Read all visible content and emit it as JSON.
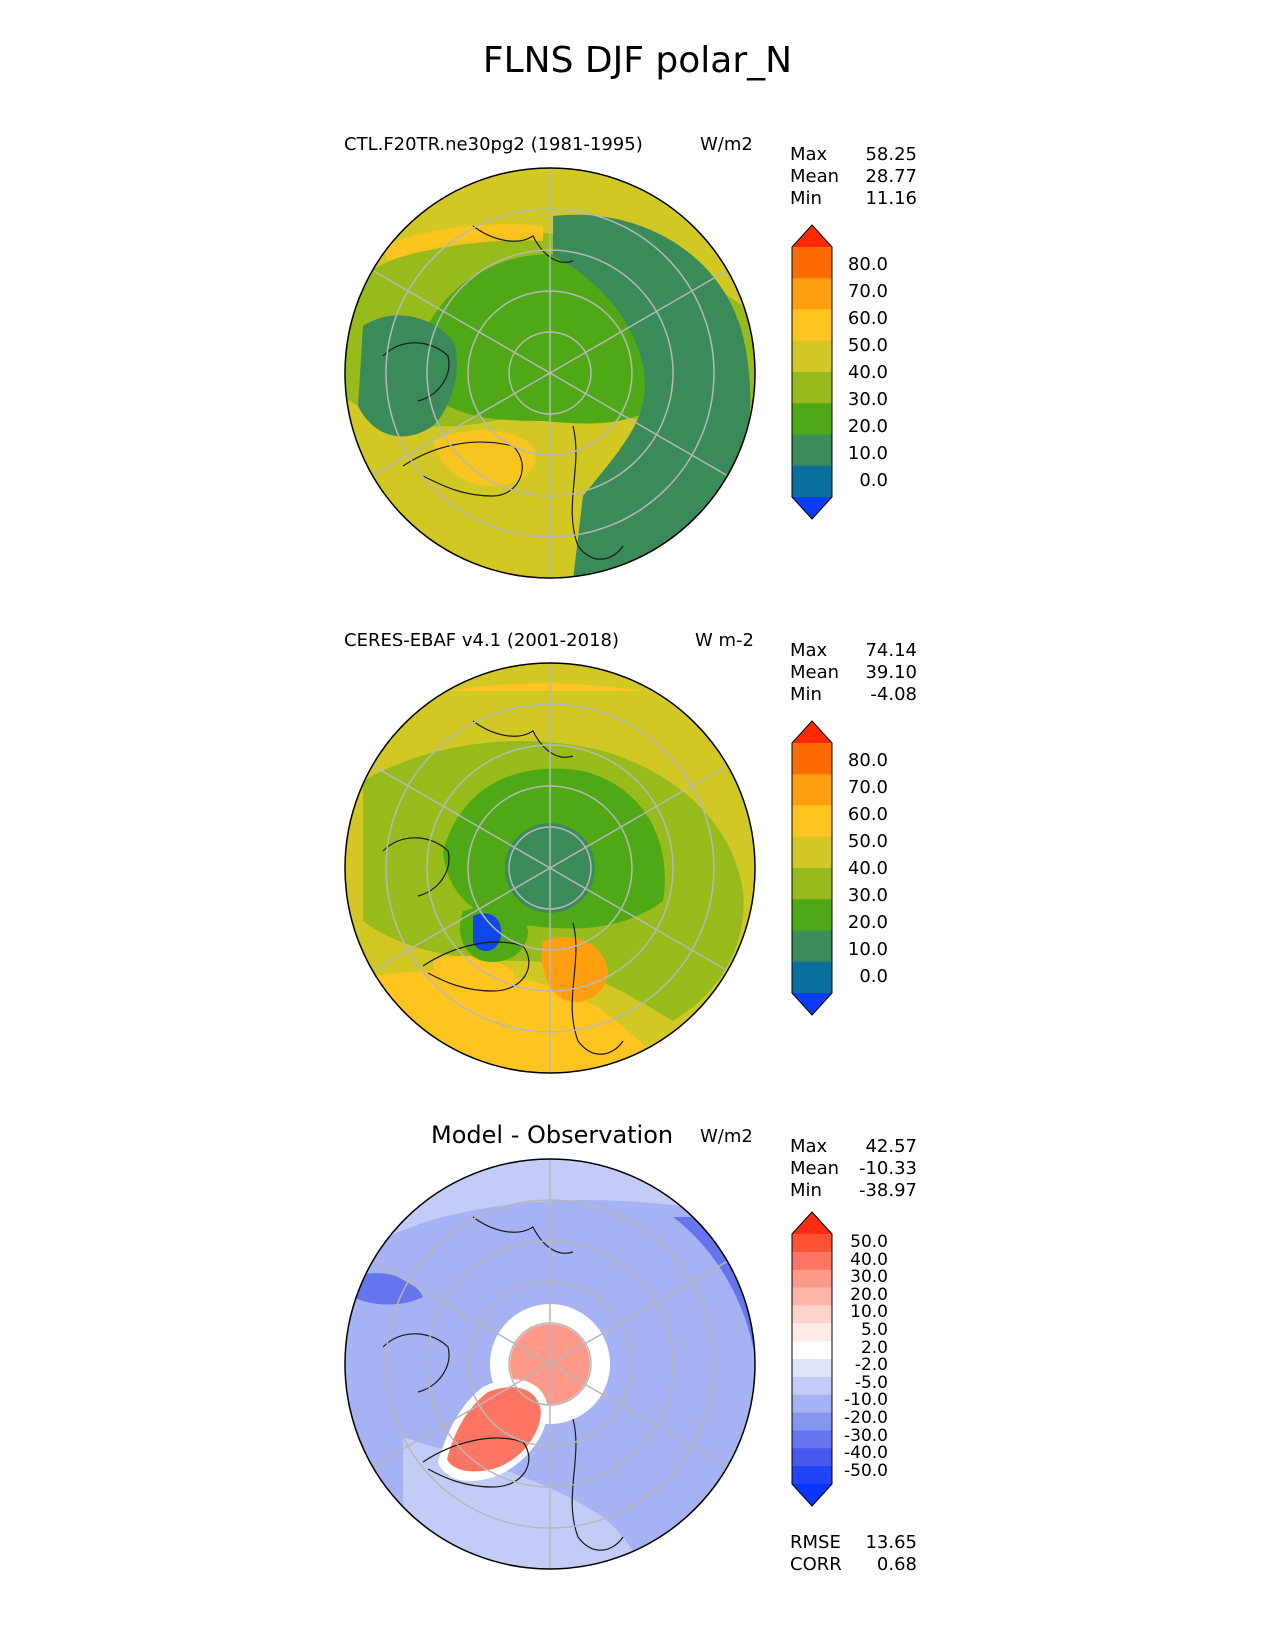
{
  "title": "FLNS DJF polar_N",
  "panels": [
    {
      "title": "CTL.F20TR.ne30pg2 (1981-1995)",
      "units": "W/m2",
      "stats": [
        {
          "label": "Max",
          "value": "58.25"
        },
        {
          "label": "Mean",
          "value": "28.77"
        },
        {
          "label": "Min",
          "value": "11.16"
        }
      ]
    },
    {
      "title": "CERES-EBAF v4.1 (2001-2018)",
      "units": "W m-2",
      "stats": [
        {
          "label": "Max",
          "value": "74.14"
        },
        {
          "label": "Mean",
          "value": "39.10"
        },
        {
          "label": "Min",
          "value": "-4.08"
        }
      ]
    },
    {
      "title": "Model - Observation",
      "units": "W/m2",
      "stats": [
        {
          "label": "Max",
          "value": "42.57"
        },
        {
          "label": "Mean",
          "value": "-10.33"
        },
        {
          "label": "Min",
          "value": "-38.97"
        }
      ],
      "metrics": [
        {
          "label": "RMSE",
          "value": "13.65"
        },
        {
          "label": "CORR",
          "value": "0.68"
        }
      ]
    }
  ],
  "colorbar_main": {
    "labels": [
      "80.0",
      "70.0",
      "60.0",
      "50.0",
      "40.0",
      "30.0",
      "20.0",
      "10.0",
      "0.0"
    ],
    "colors": [
      "#ff2a00",
      "#ff6a00",
      "#ff9f10",
      "#ffc420",
      "#d2c824",
      "#98bb1c",
      "#4fa815",
      "#3a8a5a",
      "#096e9c",
      "#0a3cff"
    ],
    "over_color": "#ff2a00",
    "under_color": "#0a3cff"
  },
  "colorbar_diff": {
    "labels": [
      "50.0",
      "40.0",
      "30.0",
      "20.0",
      "10.0",
      "5.0",
      "2.0",
      "-2.0",
      "-5.0",
      "-10.0",
      "-20.0",
      "-30.0",
      "-40.0",
      "-50.0"
    ],
    "colors": [
      "#ff2b12",
      "#ff5136",
      "#ff7563",
      "#ff9a8a",
      "#ffb5aa",
      "#ffd3cc",
      "#ffecea",
      "#ffffff",
      "#dfe5fb",
      "#c3ccf7",
      "#a6b2f4",
      "#8695f0",
      "#6674ee",
      "#4559ef",
      "#1f43f5",
      "#0737ff"
    ],
    "over_color": "#ff2b12",
    "under_color": "#0737ff"
  },
  "map_colors": {
    "panel1": {
      "background": "#d2c824",
      "ocean_inner": "#4fa815",
      "ocean_east": "#3a8a5a",
      "band": "#98bb1c",
      "accent": "#ffc420"
    },
    "panel2": {
      "background": "#d2c824",
      "inner": "#4fa815",
      "pole": "#3a8a5a",
      "band": "#98bb1c",
      "accent": "#ffc420",
      "hot": "#ff9f10",
      "cold": "#0a3cff"
    },
    "panel3": {
      "background": "#a6b2f4",
      "light": "#c3ccf7",
      "pole": "#ff9a8a",
      "greenland": "#ff7563",
      "white": "#ffffff",
      "dark": "#6674ee"
    },
    "coastline": "#1a1a1a",
    "grid": "#b8b8b8"
  }
}
